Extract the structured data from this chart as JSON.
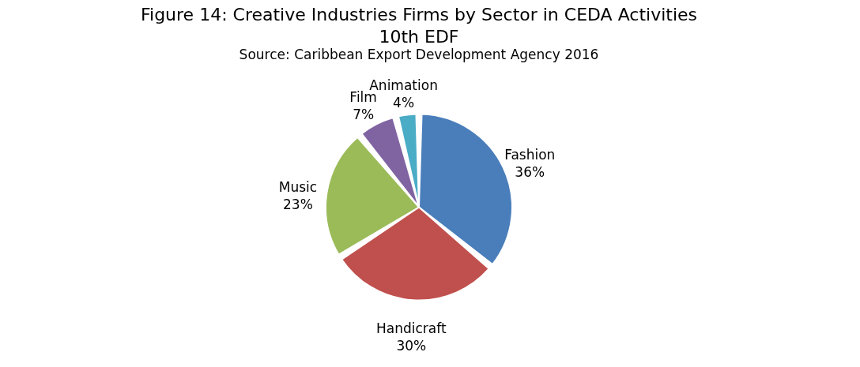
{
  "chart_data": {
    "type": "pie",
    "title": "Figure 14: Creative Industries Firms by Sector in CEDA Activities 10th EDF",
    "subtitle": "Source: Caribbean Export Development Agency 2016",
    "categories": [
      "Fashion",
      "Handicraft",
      "Music",
      "Film",
      "Animation"
    ],
    "values": [
      36,
      30,
      23,
      7,
      4
    ],
    "colors": [
      "#4a7ebb",
      "#c0504d",
      "#9bbb59",
      "#8064a2",
      "#4bacc6"
    ],
    "value_labels": [
      "36%",
      "30%",
      "23%",
      "7%",
      "4%"
    ],
    "legend": false
  }
}
